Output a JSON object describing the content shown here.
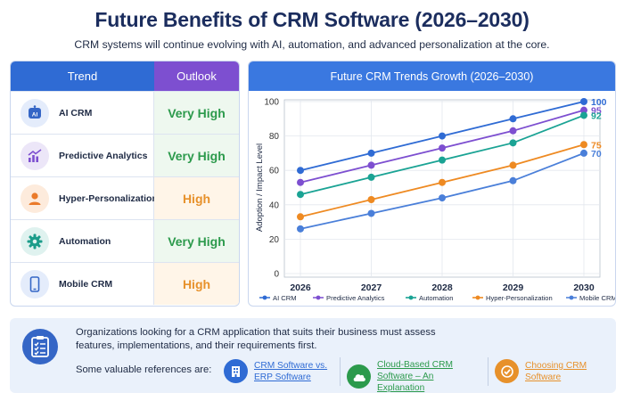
{
  "header": {
    "title": "Future Benefits of CRM Software (2026–2030)",
    "subtitle": "CRM systems will continue evolving with AI, automation, and advanced personalization at the core."
  },
  "trends_table": {
    "col_trend": "Trend",
    "col_outlook": "Outlook",
    "rows": [
      {
        "name": "AI CRM",
        "outlook": "Very High",
        "icon": "ai-chip-icon",
        "icon_bg": "#e4ecfb",
        "icon_color": "#3566c6"
      },
      {
        "name": "Predictive Analytics",
        "outlook": "Very High",
        "icon": "trend-chart-icon",
        "icon_bg": "#ece6f8",
        "icon_color": "#7d4fd0"
      },
      {
        "name": "Hyper-Personalization",
        "outlook": "High",
        "icon": "user-icon",
        "icon_bg": "#fdebdc",
        "icon_color": "#ea7a2a"
      },
      {
        "name": "Automation",
        "outlook": "Very High",
        "icon": "gear-icon",
        "icon_bg": "#dff2ef",
        "icon_color": "#1b9c8a"
      },
      {
        "name": "Mobile CRM",
        "outlook": "High",
        "icon": "mobile-phone-icon",
        "icon_bg": "#e4ecfb",
        "icon_color": "#3566c6"
      }
    ]
  },
  "chart_panel": {
    "title": "Future CRM Trends Growth (2026–2030)"
  },
  "chart_data": {
    "type": "line",
    "title": "Future CRM Trends Growth (2026–2030)",
    "xlabel": "",
    "ylabel": "Adoption / Impact Level",
    "x": [
      "2026",
      "2027",
      "2028",
      "2029",
      "2030"
    ],
    "ylim": [
      0,
      100
    ],
    "yticks": [
      0,
      20,
      40,
      60,
      80,
      100
    ],
    "grid": true,
    "legend_position": "bottom",
    "series": [
      {
        "name": "AI CRM",
        "color": "#2f6bd4",
        "values": [
          60,
          70,
          80,
          90,
          100
        ],
        "end_label": "100"
      },
      {
        "name": "Predictive Analytics",
        "color": "#7d4fd0",
        "values": [
          53,
          63,
          73,
          83,
          95
        ],
        "end_label": "95"
      },
      {
        "name": "Automation",
        "color": "#1aa394",
        "values": [
          46,
          56,
          66,
          76,
          92
        ],
        "end_label": "92"
      },
      {
        "name": "Hyper-Personalization",
        "color": "#ee8a22",
        "values": [
          33,
          43,
          53,
          63,
          75
        ],
        "end_label": "75"
      },
      {
        "name": "Mobile CRM",
        "color": "#4a7fd9",
        "values": [
          26,
          35,
          44,
          54,
          70
        ],
        "end_label": "70"
      }
    ]
  },
  "footer": {
    "text": "Organizations looking for a CRM application that suits their business must assess features, implementations, and their requirements first.",
    "refs_label": "Some valuable references are:",
    "refs": [
      {
        "label": "CRM Software vs. ERP Software",
        "icon": "building-icon",
        "color": "#2f6bd4"
      },
      {
        "label": "Cloud-Based CRM Software – An Explanation",
        "icon": "cloud-icon",
        "color": "#2c9a4c"
      },
      {
        "label": "Choosing CRM Software",
        "icon": "checkmark-icon",
        "color": "#e7912b"
      }
    ]
  }
}
